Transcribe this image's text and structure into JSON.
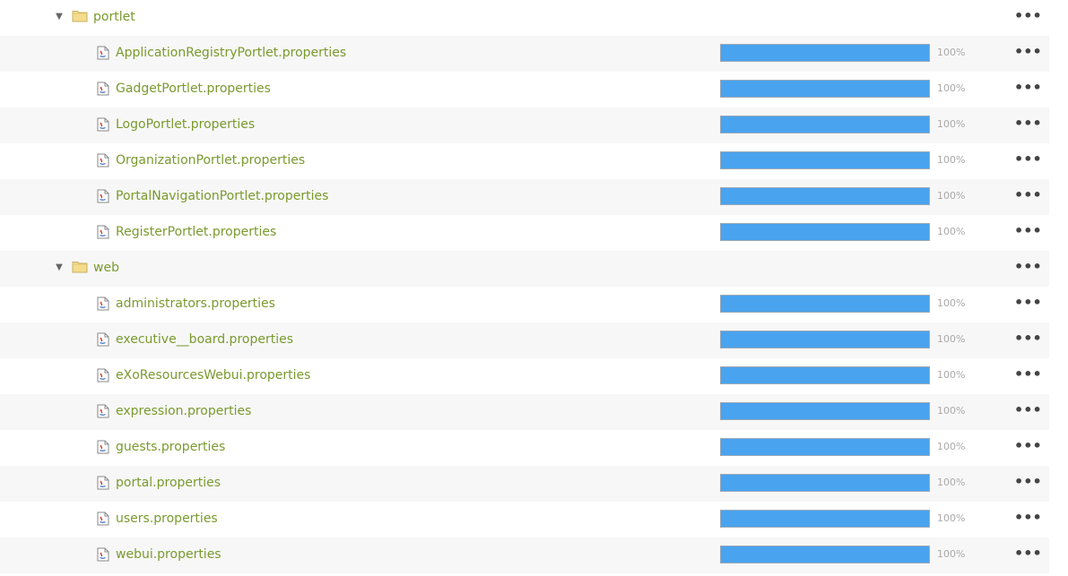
{
  "tree": [
    {
      "type": "folder",
      "label": "portlet",
      "expanded": true,
      "children": [
        {
          "label": "ApplicationRegistryPortlet.properties",
          "progress_text": "100%",
          "progress": 1.0
        },
        {
          "label": "GadgetPortlet.properties",
          "progress_text": "100%",
          "progress": 1.0
        },
        {
          "label": "LogoPortlet.properties",
          "progress_text": "100%",
          "progress": 1.0
        },
        {
          "label": "OrganizationPortlet.properties",
          "progress_text": "100%",
          "progress": 1.0
        },
        {
          "label": "PortalNavigationPortlet.properties",
          "progress_text": "100%",
          "progress": 1.0
        },
        {
          "label": "RegisterPortlet.properties",
          "progress_text": "100%",
          "progress": 1.0
        }
      ]
    },
    {
      "type": "folder",
      "label": "web",
      "expanded": true,
      "children": [
        {
          "label": "administrators.properties",
          "progress_text": "100%",
          "progress": 1.0
        },
        {
          "label": "executive__board.properties",
          "progress_text": "100%",
          "progress": 1.0
        },
        {
          "label": "eXoResourcesWebui.properties",
          "progress_text": "100%",
          "progress": 1.0
        },
        {
          "label": "expression.properties",
          "progress_text": "100%",
          "progress": 1.0
        },
        {
          "label": "guests.properties",
          "progress_text": "100%",
          "progress": 1.0
        },
        {
          "label": "portal.properties",
          "progress_text": "100%",
          "progress": 1.0
        },
        {
          "label": "users.properties",
          "progress_text": "100%",
          "progress": 1.0
        },
        {
          "label": "webui.properties",
          "progress_text": "100%",
          "progress": 1.0
        }
      ]
    }
  ],
  "icons": {
    "toggle": "triangle-down-icon",
    "folder": "folder-icon",
    "file": "java-properties-file-icon",
    "menu": "more-options-icon"
  },
  "colors": {
    "label": "#7a9a2e",
    "progress_fill": "#4aa3ee",
    "row_alt": "#f7f7f7",
    "folder": "#f3dc8c"
  }
}
